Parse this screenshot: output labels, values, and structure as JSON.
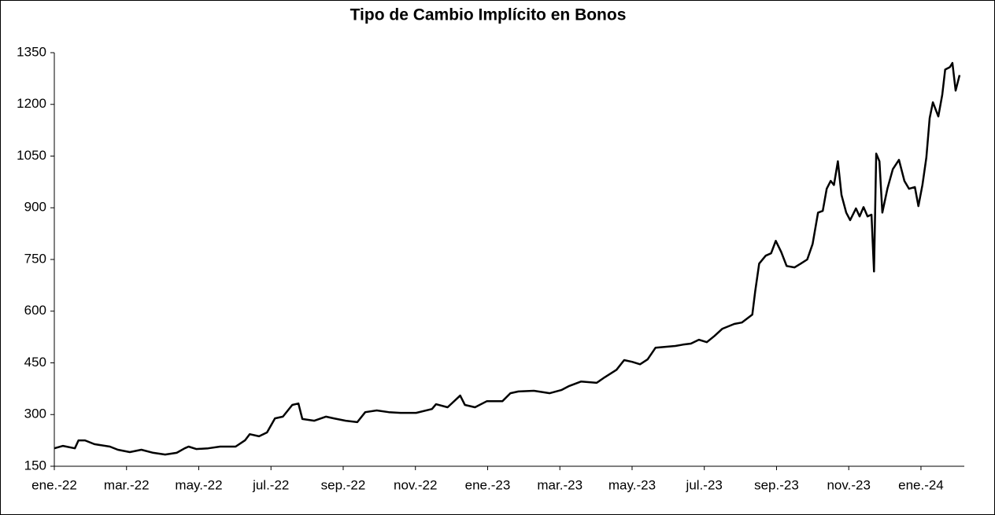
{
  "chart_data": {
    "type": "line",
    "title": "Tipo de Cambio Implícito en Bonos",
    "xlim": [
      0,
      25.2
    ],
    "xticks": [
      {
        "value": 0,
        "label": "ene.-22"
      },
      {
        "value": 2,
        "label": "mar.-22"
      },
      {
        "value": 4,
        "label": "may.-22"
      },
      {
        "value": 6,
        "label": "jul.-22"
      },
      {
        "value": 8,
        "label": "sep.-22"
      },
      {
        "value": 10,
        "label": "nov.-22"
      },
      {
        "value": 12,
        "label": "ene.-23"
      },
      {
        "value": 14,
        "label": "mar.-23"
      },
      {
        "value": 16,
        "label": "may.-23"
      },
      {
        "value": 18,
        "label": "jul.-23"
      },
      {
        "value": 20,
        "label": "sep.-23"
      },
      {
        "value": 22,
        "label": "nov.-23"
      },
      {
        "value": 24,
        "label": "ene.-24"
      }
    ],
    "ylim": [
      150,
      1350
    ],
    "yticks": [
      150,
      300,
      450,
      600,
      750,
      900,
      1050,
      1200,
      1350
    ],
    "series": [
      {
        "color": "#000000",
        "x": [
          0,
          0.24,
          0.57,
          0.67,
          0.85,
          1.11,
          1.54,
          1.76,
          2.09,
          2.41,
          2.74,
          3.07,
          3.39,
          3.61,
          3.72,
          3.93,
          4.26,
          4.59,
          5.02,
          5.28,
          5.41,
          5.67,
          5.89,
          6.11,
          6.33,
          6.59,
          6.76,
          6.87,
          7.2,
          7.52,
          7.74,
          8.07,
          8.39,
          8.61,
          8.93,
          9.26,
          9.59,
          10.02,
          10.46,
          10.57,
          10.89,
          11.24,
          11.37,
          11.65,
          11.98,
          12.41,
          12.63,
          12.85,
          13.28,
          13.72,
          14.04,
          14.26,
          14.59,
          15.02,
          15.24,
          15.57,
          15.78,
          16,
          16.22,
          16.43,
          16.65,
          17.2,
          17.41,
          17.63,
          17.85,
          18.07,
          18.28,
          18.5,
          18.83,
          19.04,
          19.33,
          19.41,
          19.52,
          19.7,
          19.85,
          19.98,
          20.13,
          20.28,
          20.5,
          20.67,
          20.85,
          21,
          21.15,
          21.28,
          21.39,
          21.5,
          21.59,
          21.7,
          21.8,
          21.93,
          22.04,
          22.2,
          22.3,
          22.41,
          22.52,
          22.63,
          22.7,
          22.76,
          22.85,
          22.93,
          23.07,
          23.22,
          23.39,
          23.54,
          23.67,
          23.83,
          23.93,
          24.04,
          24.15,
          24.24,
          24.33,
          24.48,
          24.59,
          24.67,
          24.8,
          24.87,
          24.96,
          25.07
        ],
        "values": [
          202,
          209,
          202,
          225,
          225,
          214,
          207,
          198,
          191,
          198,
          189,
          184,
          189,
          202,
          207,
          200,
          202,
          207,
          207,
          225,
          243,
          237,
          248,
          289,
          294,
          328,
          332,
          287,
          282,
          294,
          289,
          282,
          278,
          307,
          312,
          307,
          305,
          305,
          316,
          330,
          321,
          355,
          328,
          321,
          339,
          339,
          362,
          367,
          369,
          362,
          371,
          383,
          396,
          392,
          408,
          430,
          458,
          453,
          446,
          460,
          494,
          499,
          503,
          506,
          517,
          510,
          528,
          549,
          563,
          567,
          590,
          658,
          738,
          761,
          768,
          804,
          772,
          731,
          727,
          738,
          750,
          795,
          886,
          891,
          955,
          978,
          966,
          1035,
          937,
          886,
          864,
          898,
          875,
          902,
          875,
          880,
          715,
          1057,
          1035,
          886,
          955,
          1012,
          1039,
          978,
          955,
          960,
          905,
          966,
          1046,
          1160,
          1206,
          1165,
          1228,
          1301,
          1308,
          1320,
          1240,
          1285
        ]
      }
    ]
  }
}
